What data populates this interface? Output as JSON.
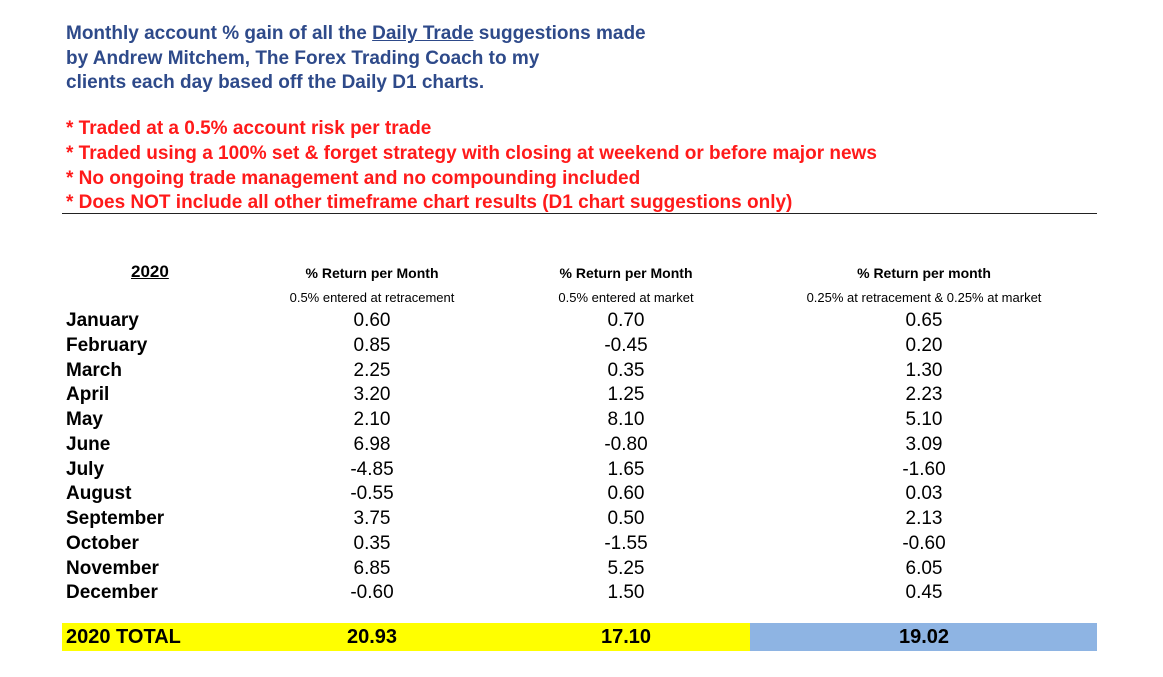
{
  "intro": {
    "line1_before": "Monthly account % gain of all the ",
    "line1_link": "Daily Trade",
    "line1_after": " suggestions made",
    "line2": "by Andrew Mitchem, The Forex Trading Coach to my",
    "line3": "clients each day based off the Daily D1 charts."
  },
  "notes": [
    "* Traded at a 0.5% account risk per trade",
    "* Traded using a 100% set & forget strategy with closing at weekend or before major news",
    "* No ongoing trade management and no compounding included",
    "* Does NOT include all other timeframe chart results (D1 chart suggestions only)"
  ],
  "table": {
    "year_header": "2020",
    "columns": [
      {
        "header": "% Return per Month",
        "sub": "0.5% entered at retracement"
      },
      {
        "header": "% Return per Month",
        "sub": "0.5% entered at market"
      },
      {
        "header": "% Return per month",
        "sub": "0.25% at retracement & 0.25% at market"
      }
    ],
    "rows": [
      {
        "month": "January",
        "v": [
          "0.60",
          "0.70",
          "0.65"
        ]
      },
      {
        "month": "February",
        "v": [
          "0.85",
          "-0.45",
          "0.20"
        ]
      },
      {
        "month": "March",
        "v": [
          "2.25",
          "0.35",
          "1.30"
        ]
      },
      {
        "month": "April",
        "v": [
          "3.20",
          "1.25",
          "2.23"
        ]
      },
      {
        "month": "May",
        "v": [
          "2.10",
          "8.10",
          "5.10"
        ]
      },
      {
        "month": "June",
        "v": [
          "6.98",
          "-0.80",
          "3.09"
        ]
      },
      {
        "month": "July",
        "v": [
          "-4.85",
          "1.65",
          "-1.60"
        ]
      },
      {
        "month": "August",
        "v": [
          "-0.55",
          "0.60",
          "0.03"
        ]
      },
      {
        "month": "September",
        "v": [
          "3.75",
          "0.50",
          "2.13"
        ]
      },
      {
        "month": "October",
        "v": [
          "0.35",
          "-1.55",
          "-0.60"
        ]
      },
      {
        "month": "November",
        "v": [
          "6.85",
          "5.25",
          "6.05"
        ]
      },
      {
        "month": "December",
        "v": [
          "-0.60",
          "1.50",
          "0.45"
        ]
      }
    ],
    "total": {
      "label": "2020 TOTAL",
      "v": [
        "20.93",
        "17.10",
        "19.02"
      ]
    }
  },
  "colors": {
    "intro_text": "#2e4a8a",
    "notes_text": "#ff1a1a",
    "total_highlight_yellow": "#ffff00",
    "total_highlight_blue": "#8eb4e3"
  }
}
